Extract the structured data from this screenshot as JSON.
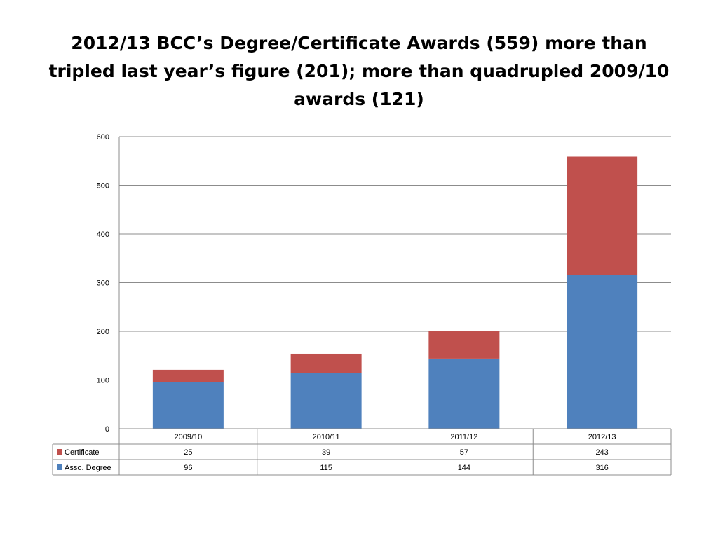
{
  "slide": {
    "title_lines": [
      "2012/13 BCC’s Degree/Certificate Awards (559) more than",
      "tripled last year’s figure (201); more than quadrupled 2009/10",
      "awards (121)"
    ]
  },
  "chart_data": {
    "type": "bar",
    "stacked": true,
    "categories": [
      "2009/10",
      "2010/11",
      "2011/12",
      "2012/13"
    ],
    "series": [
      {
        "name": "Asso. Degree",
        "values": [
          96,
          115,
          144,
          316
        ],
        "color": "#4F81BD"
      },
      {
        "name": "Certificate",
        "values": [
          25,
          39,
          57,
          243
        ],
        "color": "#C0504D"
      }
    ],
    "table_order": [
      "Certificate",
      "Asso. Degree"
    ],
    "ylim": [
      0,
      600
    ],
    "yticks": [
      0,
      100,
      200,
      300,
      400,
      500,
      600
    ],
    "grid": true,
    "legend": "data-table"
  }
}
